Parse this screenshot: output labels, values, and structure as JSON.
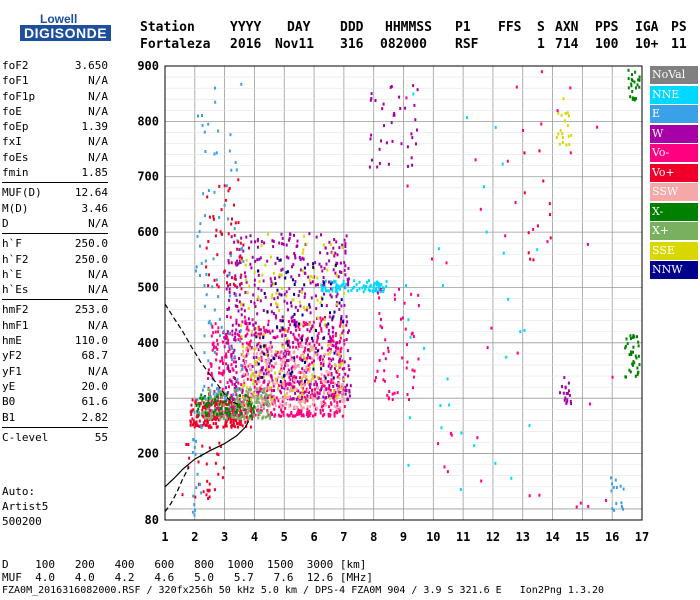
{
  "logo": {
    "line1": "Lowell",
    "line2": "DIGISONDE"
  },
  "header": {
    "labels": [
      "Station",
      "YYYY",
      "DAY",
      "DDD",
      "HHMMSS",
      "P1",
      "FFS",
      "S",
      "AXN",
      "PPS",
      "IGA",
      "PS"
    ],
    "values": [
      "Fortaleza",
      "2016",
      "Nov11",
      "316",
      "082000",
      "RSF",
      "",
      "1",
      "714",
      "100",
      "10+",
      "11"
    ]
  },
  "params": [
    [
      {
        "name": "foF2",
        "value": "3.650"
      },
      {
        "name": "foF1",
        "value": "N/A"
      },
      {
        "name": "foF1p",
        "value": "N/A"
      },
      {
        "name": "foE",
        "value": "N/A"
      },
      {
        "name": "foEp",
        "value": "1.39"
      },
      {
        "name": "fxI",
        "value": "N/A"
      },
      {
        "name": "foEs",
        "value": "N/A"
      },
      {
        "name": "fmin",
        "value": "1.85"
      }
    ],
    [
      {
        "name": "MUF(D)",
        "value": "12.64"
      },
      {
        "name": "M(D)",
        "value": "3.46"
      },
      {
        "name": "D",
        "value": "N/A"
      }
    ],
    [
      {
        "name": "h`F",
        "value": "250.0"
      },
      {
        "name": "h`F2",
        "value": "250.0"
      },
      {
        "name": "h`E",
        "value": "N/A"
      },
      {
        "name": "h`Es",
        "value": "N/A"
      }
    ],
    [
      {
        "name": "hmF2",
        "value": "253.0"
      },
      {
        "name": "hmF1",
        "value": "N/A"
      },
      {
        "name": "hmE",
        "value": "110.0"
      },
      {
        "name": "yF2",
        "value": "68.7"
      },
      {
        "name": "yF1",
        "value": "N/A"
      },
      {
        "name": "yE",
        "value": "20.0"
      },
      {
        "name": "B0",
        "value": "61.6"
      },
      {
        "name": "B1",
        "value": "2.82"
      }
    ],
    [
      {
        "name": "C-level",
        "value": "55"
      }
    ]
  ],
  "auto": {
    "label": "Auto:",
    "software": "Artist5",
    "version": "500200"
  },
  "legend": [
    {
      "label": "NoVal",
      "color": "#808080"
    },
    {
      "label": "NNE",
      "color": "#00d8ff"
    },
    {
      "label": "E",
      "color": "#3aa0e8"
    },
    {
      "label": "W",
      "color": "#a800a8"
    },
    {
      "label": "Vo-",
      "color": "#ff0080"
    },
    {
      "label": "Vo+",
      "color": "#f00028"
    },
    {
      "label": "SSW",
      "color": "#f4a8a8"
    },
    {
      "label": "X-",
      "color": "#008000"
    },
    {
      "label": "X+",
      "color": "#78b060"
    },
    {
      "label": "SSE",
      "color": "#d8d800"
    },
    {
      "label": "NNW",
      "color": "#00008c"
    }
  ],
  "dtable": {
    "d_label": "D",
    "d_values": [
      "100",
      "200",
      "400",
      "600",
      "800",
      "1000",
      "1500",
      "3000"
    ],
    "d_unit": "[km]",
    "muf_label": "MUF",
    "muf_values": [
      "4.0",
      "4.0",
      "4.2",
      "4.6",
      "5.0",
      "5.7",
      "7.6",
      "12.6"
    ],
    "muf_unit": "[MHz]"
  },
  "footer": "FZA0M_2016316082000.RSF / 320fx256h 50 kHz 5.0 km / DPS-4 FZA0M 904 / 3.9 S 321.6 E   Ion2Png 1.3.20",
  "chart_data": {
    "type": "scatter",
    "xlim": [
      1,
      17
    ],
    "ylim": [
      80,
      900
    ],
    "x_ticks": [
      1,
      2,
      3,
      4,
      5,
      6,
      7,
      8,
      9,
      10,
      11,
      12,
      13,
      14,
      15,
      16,
      17
    ],
    "y_ticks": [
      80,
      200,
      300,
      400,
      500,
      600,
      700,
      800,
      900
    ],
    "grid": true,
    "legend_position": "right",
    "xlabel": "",
    "ylabel": "",
    "lines": [
      {
        "style": "dashed",
        "color": "#000000",
        "points": [
          [
            1.0,
            470
          ],
          [
            1.3,
            445
          ],
          [
            1.6,
            420
          ],
          [
            1.9,
            392
          ],
          [
            2.2,
            365
          ],
          [
            2.6,
            336
          ],
          [
            2.9,
            315
          ],
          [
            3.1,
            300
          ],
          [
            3.3,
            292
          ],
          [
            3.5,
            288
          ]
        ]
      },
      {
        "style": "solid",
        "color": "#000000",
        "points": [
          [
            1.0,
            140
          ],
          [
            1.3,
            155
          ],
          [
            1.6,
            172
          ],
          [
            2.0,
            190
          ],
          [
            2.5,
            205
          ],
          [
            3.0,
            218
          ],
          [
            3.4,
            232
          ],
          [
            3.7,
            248
          ],
          [
            3.8,
            258
          ]
        ]
      },
      {
        "style": "dashed",
        "color": "#000000",
        "points": [
          [
            1.0,
            95
          ],
          [
            1.2,
            110
          ],
          [
            1.4,
            130
          ],
          [
            1.6,
            155
          ],
          [
            1.8,
            175
          ]
        ]
      }
    ],
    "clusters": [
      {
        "color": "#f00028",
        "x": [
          1.8,
          3.9
        ],
        "y": [
          250,
          300
        ],
        "count": 220
      },
      {
        "color": "#ff0080",
        "x": [
          2.4,
          7.0
        ],
        "y": [
          270,
          450
        ],
        "count": 650
      },
      {
        "color": "#a800a8",
        "x": [
          3.0,
          7.2
        ],
        "y": [
          300,
          600
        ],
        "count": 520
      },
      {
        "color": "#f4a8a8",
        "x": [
          3.5,
          7.0
        ],
        "y": [
          285,
          400
        ],
        "count": 240
      },
      {
        "color": "#78b060",
        "x": [
          2.2,
          4.5
        ],
        "y": [
          265,
          320
        ],
        "count": 170
      },
      {
        "color": "#008000",
        "x": [
          2.0,
          4.0
        ],
        "y": [
          270,
          310
        ],
        "count": 70
      },
      {
        "color": "#d8d800",
        "x": [
          3.5,
          7.0
        ],
        "y": [
          300,
          600
        ],
        "count": 150
      },
      {
        "color": "#00d8ff",
        "x": [
          6.2,
          8.4
        ],
        "y": [
          495,
          515
        ],
        "count": 90
      },
      {
        "color": "#3aa0e8",
        "x": [
          2.0,
          3.6
        ],
        "y": [
          300,
          880
        ],
        "count": 90
      },
      {
        "color": "#00008c",
        "x": [
          4.0,
          7.0
        ],
        "y": [
          330,
          560
        ],
        "count": 70
      },
      {
        "color": "#f00028",
        "x": [
          2.3,
          3.6
        ],
        "y": [
          500,
          700
        ],
        "count": 50
      },
      {
        "color": "#a800a8",
        "x": [
          7.8,
          9.5
        ],
        "y": [
          720,
          880
        ],
        "count": 40
      },
      {
        "color": "#ff0080",
        "x": [
          8.0,
          9.5
        ],
        "y": [
          300,
          500
        ],
        "count": 50
      },
      {
        "color": "#008000",
        "x": [
          16.4,
          16.9
        ],
        "y": [
          340,
          420
        ],
        "count": 35
      },
      {
        "color": "#008000",
        "x": [
          16.5,
          16.9
        ],
        "y": [
          840,
          895
        ],
        "count": 25
      },
      {
        "color": "#d8d800",
        "x": [
          14.1,
          14.6
        ],
        "y": [
          760,
          850
        ],
        "count": 20
      },
      {
        "color": "#a800a8",
        "x": [
          14.2,
          14.6
        ],
        "y": [
          290,
          340
        ],
        "count": 18
      },
      {
        "color": "#f00028",
        "x": [
          13.0,
          14.0
        ],
        "y": [
          550,
          750
        ],
        "count": 12
      },
      {
        "color": "#3aa0e8",
        "x": [
          15.9,
          16.4
        ],
        "y": [
          100,
          160
        ],
        "count": 14
      },
      {
        "color": "#00d8ff",
        "x": [
          9.0,
          13.5
        ],
        "y": [
          120,
          880
        ],
        "count": 30
      },
      {
        "color": "#ff0080",
        "x": [
          9.0,
          16.5
        ],
        "y": [
          100,
          900
        ],
        "count": 40
      },
      {
        "color": "#f00028",
        "x": [
          1.5,
          3.0
        ],
        "y": [
          120,
          230
        ],
        "count": 30
      },
      {
        "color": "#3aa0e8",
        "x": [
          1.9,
          2.2
        ],
        "y": [
          90,
          300
        ],
        "count": 20
      }
    ]
  }
}
